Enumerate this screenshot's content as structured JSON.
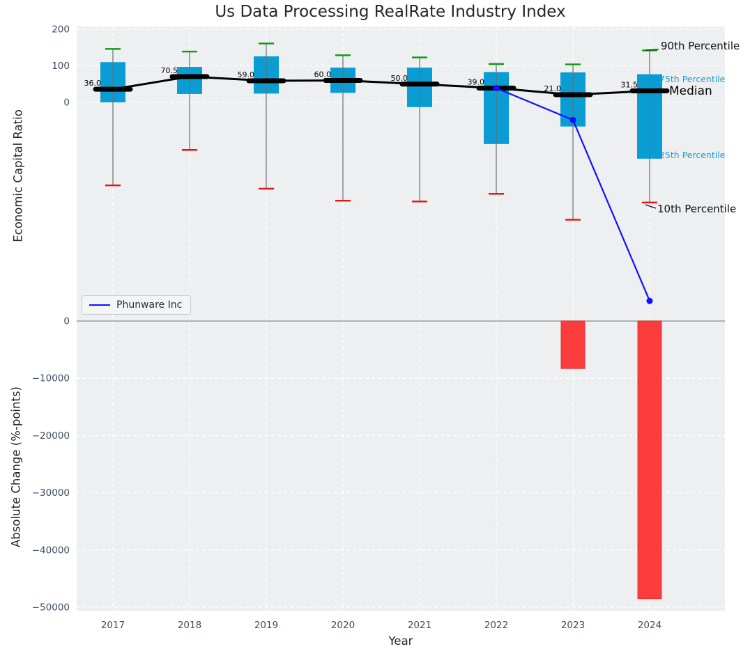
{
  "title": "Us Data Processing RealRate Industry Index",
  "legend": {
    "label": "Phunware Inc"
  },
  "colors": {
    "plot_bg": "#edeff0",
    "grid": "#ffffff",
    "box_fill": "#0a9dd3",
    "whisker": "#68707a",
    "cap_high": "#0a9c0a",
    "cap_low": "#e81212",
    "median": "#000000",
    "company_line": "#1010ff",
    "bar_fill": "#fb3c3c",
    "bar_edge": "#f23131",
    "zero_line": "#a8a8a8",
    "tick_text": "#3d4d63",
    "percentile_text": "#149fd6",
    "annotation_text": "#111111"
  },
  "chart_data": {
    "type": "combo-boxplot-line-bar",
    "xlabel": "Year",
    "categories": [
      "2017",
      "2018",
      "2019",
      "2020",
      "2021",
      "2022",
      "2023",
      "2024"
    ],
    "top_panel": {
      "ylabel": "Economic Capital Ratio",
      "ylim": [
        -598,
        208
      ],
      "yticks": [
        {
          "value": 200,
          "label": "200"
        },
        {
          "value": 100,
          "label": "100"
        },
        {
          "value": 0,
          "label": "0"
        }
      ],
      "grid": true,
      "boxes": [
        {
          "year": "2017",
          "p90": 146,
          "q3": 110,
          "median": 36,
          "q1": 0,
          "p10": -227,
          "median_label": "36.0"
        },
        {
          "year": "2018",
          "p90": 139,
          "q3": 97,
          "median": 70.5,
          "q1": 23,
          "p10": -130,
          "median_label": "70.5"
        },
        {
          "year": "2019",
          "p90": 161,
          "q3": 126,
          "median": 59,
          "q1": 24,
          "p10": -236,
          "median_label": "59.0"
        },
        {
          "year": "2020",
          "p90": 129,
          "q3": 95,
          "median": 60,
          "q1": 26,
          "p10": -269,
          "median_label": "60.0"
        },
        {
          "year": "2021",
          "p90": 123,
          "q3": 95,
          "median": 50,
          "q1": -13,
          "p10": -271,
          "median_label": "50.0"
        },
        {
          "year": "2022",
          "p90": 105,
          "q3": 83,
          "median": 39,
          "q1": -114,
          "p10": -250,
          "median_label": "39.0"
        },
        {
          "year": "2023",
          "p90": 104,
          "q3": 82,
          "median": 21,
          "q1": -66,
          "p10": -321,
          "median_label": "21.0"
        },
        {
          "year": "2024",
          "p90": 142,
          "q3": 77,
          "median": 31.5,
          "q1": -154,
          "p10": -274,
          "median_label": "31.5"
        }
      ],
      "company_line": {
        "name": "Phunware Inc",
        "points": [
          {
            "year": "2022",
            "value": 39
          },
          {
            "year": "2023",
            "value": -48
          },
          {
            "year": "2024",
            "value": -543
          }
        ]
      },
      "annotations": [
        {
          "text": "90th Percentile",
          "x": 948,
          "y": 71,
          "color": "#111111",
          "size": 15,
          "leader": [
            926,
            72,
            945,
            71
          ]
        },
        {
          "text": "75th Percentile",
          "x": 946,
          "y": 118,
          "color": "#149fd6",
          "size": 12.5
        },
        {
          "text": "Median",
          "x": 960,
          "y": 136,
          "color": "#000000",
          "size": 17
        },
        {
          "text": "25th Percentile",
          "x": 946,
          "y": 227,
          "color": "#149fd6",
          "size": 12.5
        },
        {
          "text": "10th Percentile",
          "x": 943,
          "y": 305,
          "color": "#111111",
          "size": 15,
          "leader": [
            926,
            294,
            941,
            299
          ]
        }
      ]
    },
    "bottom_panel": {
      "ylabel": "Absolute Change (%-points)",
      "ylim": [
        -50600,
        0
      ],
      "yticks": [
        {
          "value": 0,
          "label": "0"
        },
        {
          "value": -10000,
          "label": "−10000"
        },
        {
          "value": -20000,
          "label": "−20000"
        },
        {
          "value": -30000,
          "label": "−30000"
        },
        {
          "value": -40000,
          "label": "−40000"
        },
        {
          "value": -50000,
          "label": "−50000"
        }
      ],
      "grid": true,
      "bars": [
        {
          "year": "2023",
          "value": -8300
        },
        {
          "year": "2024",
          "value": -48500
        }
      ]
    }
  }
}
